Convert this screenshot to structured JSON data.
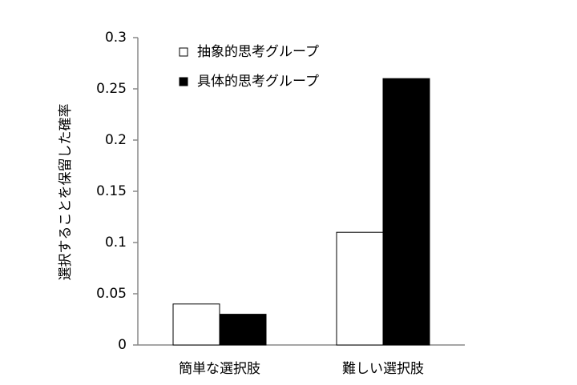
{
  "chart_data": {
    "type": "bar",
    "y_label": "選択することを保留した確率",
    "categories": [
      "簡単な選択肢",
      "難しい選択肢"
    ],
    "series": [
      {
        "name": "抽象的思考グループ",
        "color": "#ffffff",
        "values": [
          0.04,
          0.11
        ]
      },
      {
        "name": "具体的思考グループ",
        "color": "#000000",
        "values": [
          0.03,
          0.26
        ]
      }
    ],
    "ylim": [
      0,
      0.3
    ],
    "yticks": [
      0,
      0.05,
      0.1,
      0.15,
      0.2,
      0.25,
      0.3
    ],
    "grid": false
  }
}
